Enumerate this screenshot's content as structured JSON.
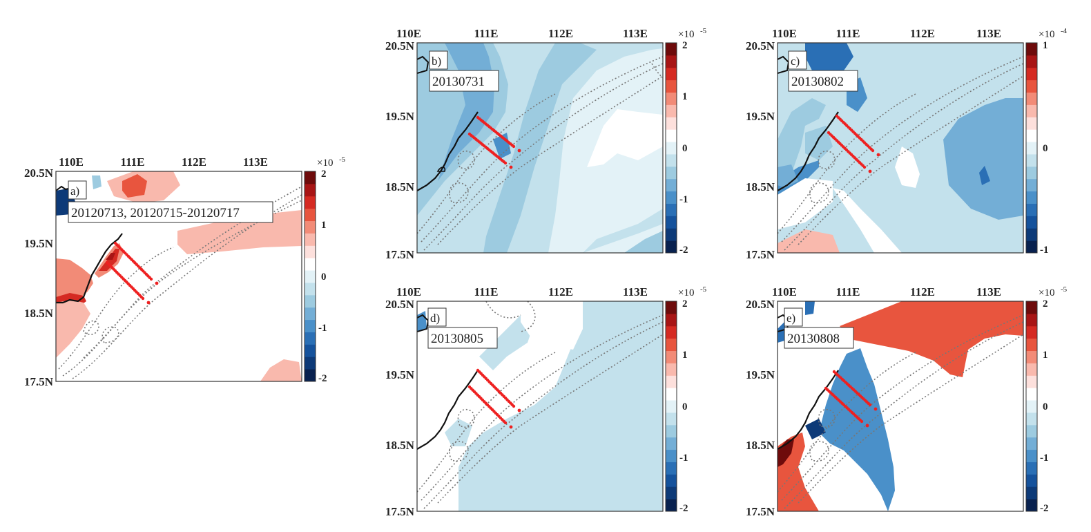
{
  "panels": [
    {
      "id": "a",
      "letter": "a)",
      "date_label": "20120713, 20120715-20120717",
      "lon_ticks": [
        "110E",
        "111E",
        "112E",
        "113E"
      ],
      "lat_ticks": [
        "20.5N",
        "19.5N",
        "18.5N",
        "17.5N"
      ],
      "colorbar": {
        "ticks": [
          "2",
          "1",
          "0",
          "-1",
          "-2"
        ],
        "multiplier": "×10",
        "exponent": "-5"
      }
    },
    {
      "id": "b",
      "letter": "b)",
      "date_label": "20130731",
      "lon_ticks": [
        "110E",
        "111E",
        "112E",
        "113E"
      ],
      "lat_ticks": [
        "20.5N",
        "19.5N",
        "18.5N",
        "17.5N"
      ],
      "colorbar": {
        "ticks": [
          "2",
          "1",
          "0",
          "-1",
          "-2"
        ],
        "multiplier": "×10",
        "exponent": "-5"
      }
    },
    {
      "id": "c",
      "letter": "c)",
      "date_label": "20130802",
      "lon_ticks": [
        "110E",
        "111E",
        "112E",
        "113E"
      ],
      "lat_ticks": [
        "20.5N",
        "19.5N",
        "18.5N",
        "17.5N"
      ],
      "colorbar": {
        "ticks": [
          "1",
          "0",
          "-1"
        ],
        "multiplier": "×10",
        "exponent": "-4"
      }
    },
    {
      "id": "d",
      "letter": "d)",
      "date_label": "20130805",
      "lon_ticks": [
        "110E",
        "111E",
        "112E",
        "113E"
      ],
      "lat_ticks": [
        "20.5N",
        "19.5N",
        "18.5N",
        "17.5N"
      ],
      "colorbar": {
        "ticks": [
          "2",
          "1",
          "0",
          "-1",
          "-2"
        ],
        "multiplier": "×10",
        "exponent": "-5"
      }
    },
    {
      "id": "e",
      "letter": "e)",
      "date_label": "20130808",
      "lon_ticks": [
        "110E",
        "111E",
        "112E",
        "113E"
      ],
      "lat_ticks": [
        "20.5N",
        "19.5N",
        "18.5N",
        "17.5N"
      ],
      "colorbar": {
        "ticks": [
          "2",
          "1",
          "0",
          "-1",
          "-2"
        ],
        "multiplier": "×10",
        "exponent": "-5"
      }
    }
  ],
  "map_extent": {
    "lon": [
      109.75,
      113.75
    ],
    "lat": [
      17.5,
      20.5
    ]
  },
  "colormap": [
    "#08214f",
    "#0d3a78",
    "#15529c",
    "#2a6fb5",
    "#4a90c9",
    "#73aed6",
    "#9dcbe0",
    "#c3e1ec",
    "#e3f2f7",
    "#ffffff",
    "#fde0dc",
    "#f9b9ad",
    "#f28b77",
    "#e8553e",
    "#d52a22",
    "#a81515",
    "#6e0b0b"
  ],
  "colors": {
    "coast": "#111111",
    "isobath": "#777777",
    "stations": "#ee2020"
  }
}
